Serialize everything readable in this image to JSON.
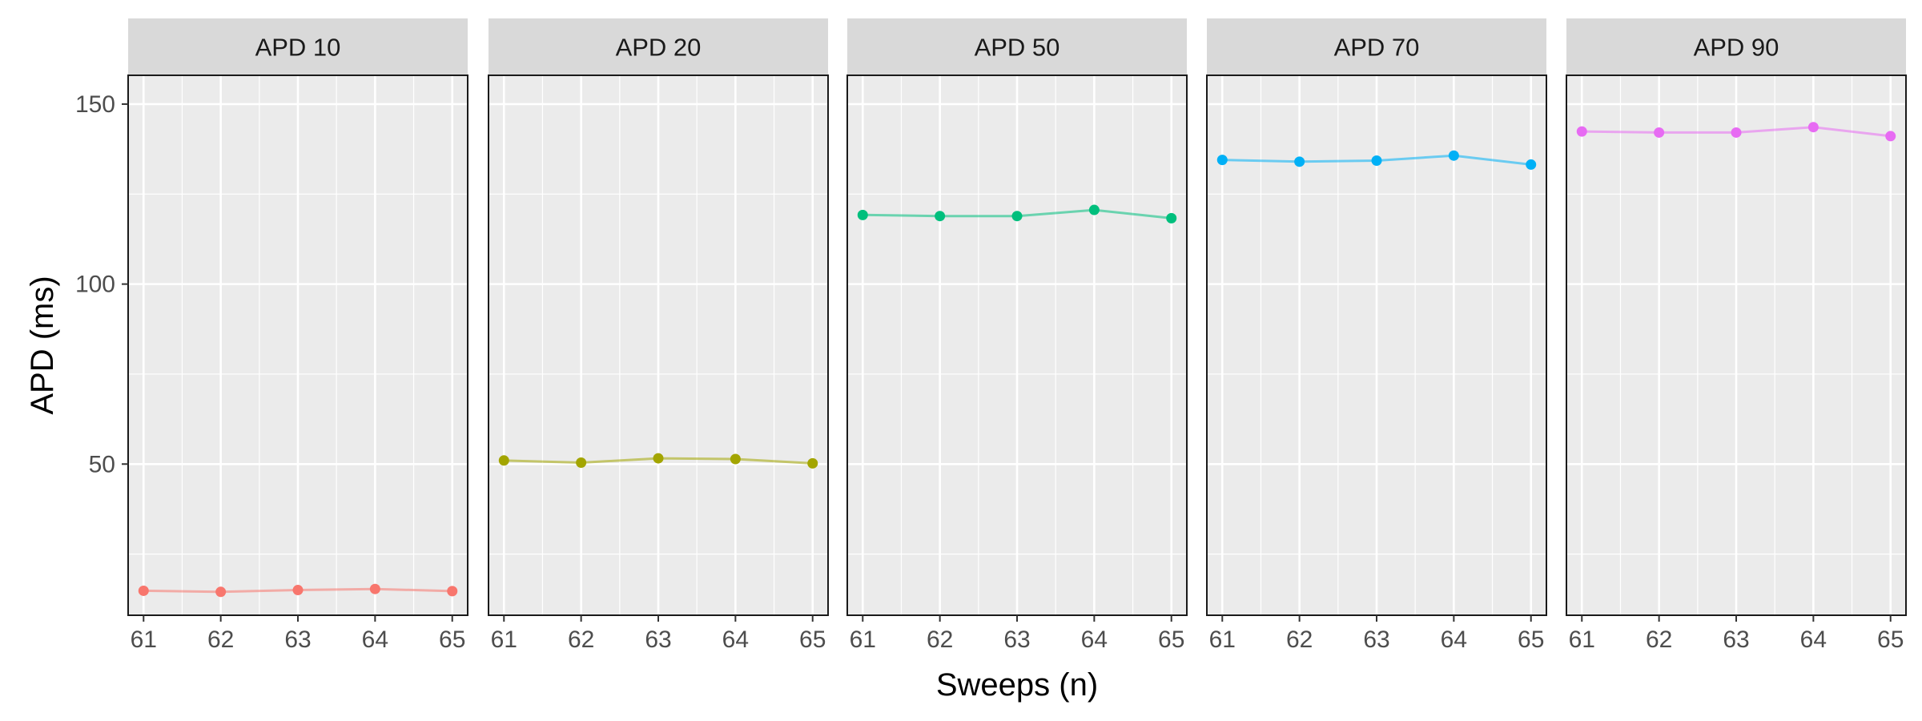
{
  "chart_data": {
    "type": "line",
    "xlabel": "Sweeps (n)",
    "ylabel": "APD (ms)",
    "x": [
      61,
      62,
      63,
      64,
      65
    ],
    "ylim": [
      8,
      158
    ],
    "xlim": [
      60.8,
      65.2
    ],
    "y_ticks": [
      50,
      100,
      150
    ],
    "x_ticks": [
      61,
      62,
      63,
      64,
      65
    ],
    "grid": true,
    "legend": "none",
    "facets": [
      {
        "label": "APD 10",
        "color": "#F8766D",
        "values": [
          14.8,
          14.5,
          15.0,
          15.3,
          14.7
        ]
      },
      {
        "label": "APD 20",
        "color": "#A3A500",
        "values": [
          51.0,
          50.4,
          51.6,
          51.4,
          50.2
        ]
      },
      {
        "label": "APD 50",
        "color": "#00BF7D",
        "values": [
          119.2,
          118.9,
          118.9,
          120.6,
          118.3
        ]
      },
      {
        "label": "APD 70",
        "color": "#00B0F6",
        "values": [
          134.5,
          134.0,
          134.3,
          135.7,
          133.2
        ]
      },
      {
        "label": "APD 90",
        "color": "#E76BF3",
        "values": [
          142.4,
          142.1,
          142.1,
          143.6,
          141.1
        ]
      }
    ]
  }
}
